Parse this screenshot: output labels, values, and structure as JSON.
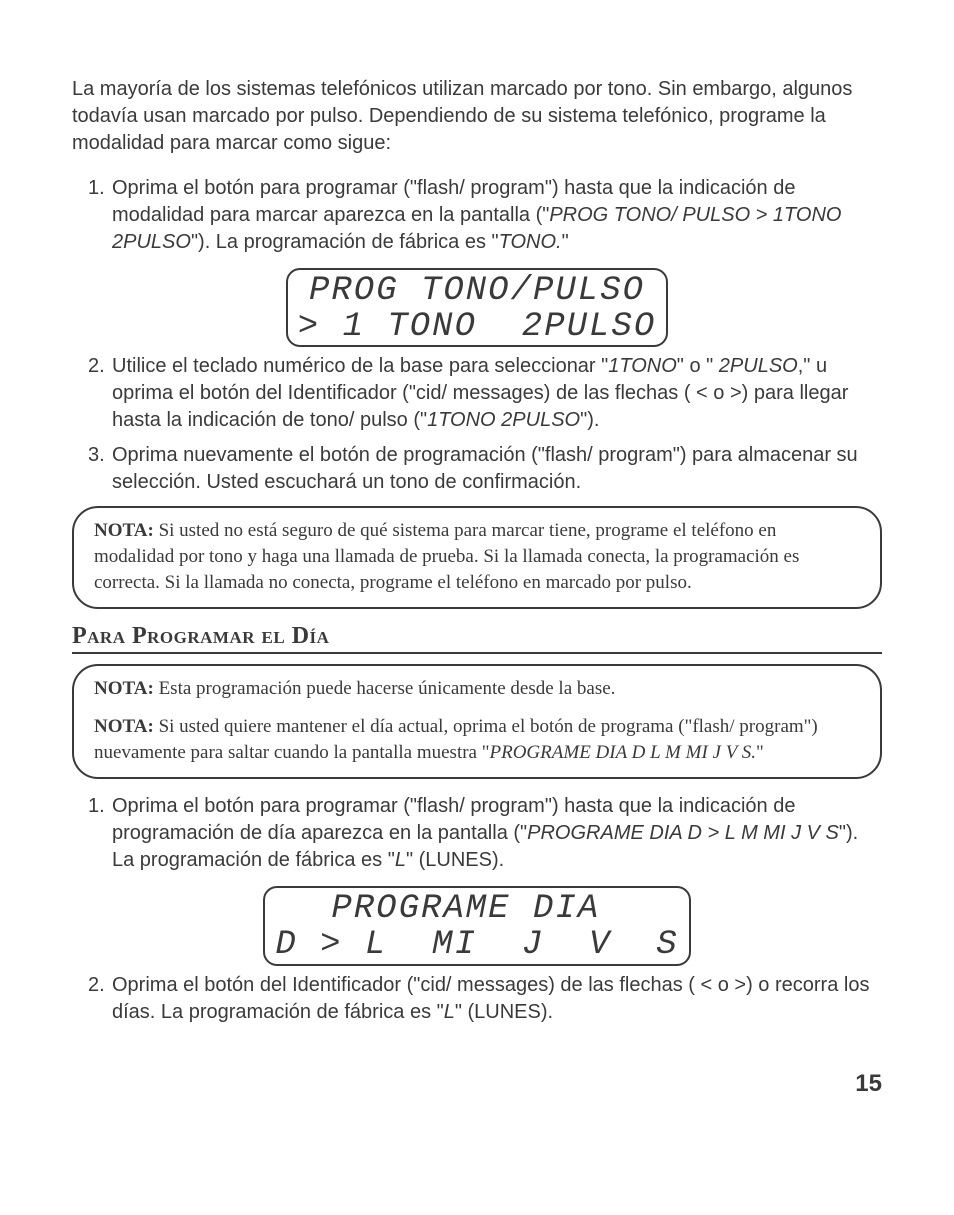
{
  "intro": "La mayoría de los sistemas telefónicos utilizan marcado por tono. Sin embargo, algunos todavía usan marcado por pulso. Dependiendo de su sistema telefónico, programe la modalidad para marcar como sigue:",
  "list_a": {
    "i1": {
      "num": "1.",
      "pre": "Oprima el botón para programar (\"flash/ program\") hasta que la indicación de modalidad para marcar aparezca en la pantalla (\"",
      "em": "PROG TONO/ PULSO > 1TONO 2PULSO",
      "mid": "\"). La programación de fábrica es \"",
      "em2": "TONO.",
      "post": "\""
    },
    "i2": {
      "num": "2.",
      "pre": "Utilice el teclado numérico de la base para seleccionar  \"",
      "em1": "1TONO",
      "mid1": "\" o \" ",
      "em2": "2PULSO",
      "mid2": ",\" u oprima el botón del Identificador (\"cid/ messages) de las flechas ( < o >) para llegar hasta la indicación de tono/ pulso  (\"",
      "em3": "1TONO 2PULSO",
      "post": "\")."
    },
    "i3": {
      "num": "3.",
      "text": "Oprima nuevamente el botón de programación (\"flash/ program\") para almacenar su selección. Usted escuchará un tono de confirmación."
    }
  },
  "lcd1": {
    "row1": "PROG TONO/PULSO",
    "row2": "> 1 TONO  2PULSO"
  },
  "note1": {
    "label": "NOTA:",
    "text": " Si usted no está seguro de qué sistema para marcar tiene, programe el teléfono en modalidad por tono y haga una llamada de prueba. Si la llamada conecta, la programación es correcta. Si la llamada no conecta, programe el teléfono en marcado por pulso."
  },
  "section_title": "Para Programar el Día",
  "note2": {
    "p1_label": "NOTA:",
    "p1_text": " Esta programación puede hacerse únicamente desde la base.",
    "p2_label": "NOTA:",
    "p2_pre": " Si usted quiere mantener el día actual, oprima el botón de programa (\"flash/ program\") nuevamente para saltar cuando la pantalla muestra \"",
    "p2_em": "PROGRAME DIA D L M MI J V S.",
    "p2_post": "\""
  },
  "list_b": {
    "i1": {
      "num": "1.",
      "pre": "Oprima el botón para programar (\"flash/ program\") hasta que la indicación de programación de día aparezca en la pantalla (\"",
      "em1": "PROGRAME DIA D > L M MI J V S",
      "mid": "\"). La programación de fábrica es \"",
      "em2": "L",
      "post": "\" (LUNES)."
    },
    "i2": {
      "num": "2.",
      "pre": "Oprima el botón del Identificador (\"cid/ messages) de las flechas ( < o >) o recorra los días. La programación de fábrica es \"",
      "em": "L",
      "post": "\" (LUNES)."
    }
  },
  "lcd2": {
    "row1": "PROGRAME DIA ",
    "row2": "D > L  MI  J  V  S"
  },
  "page_number": "15"
}
